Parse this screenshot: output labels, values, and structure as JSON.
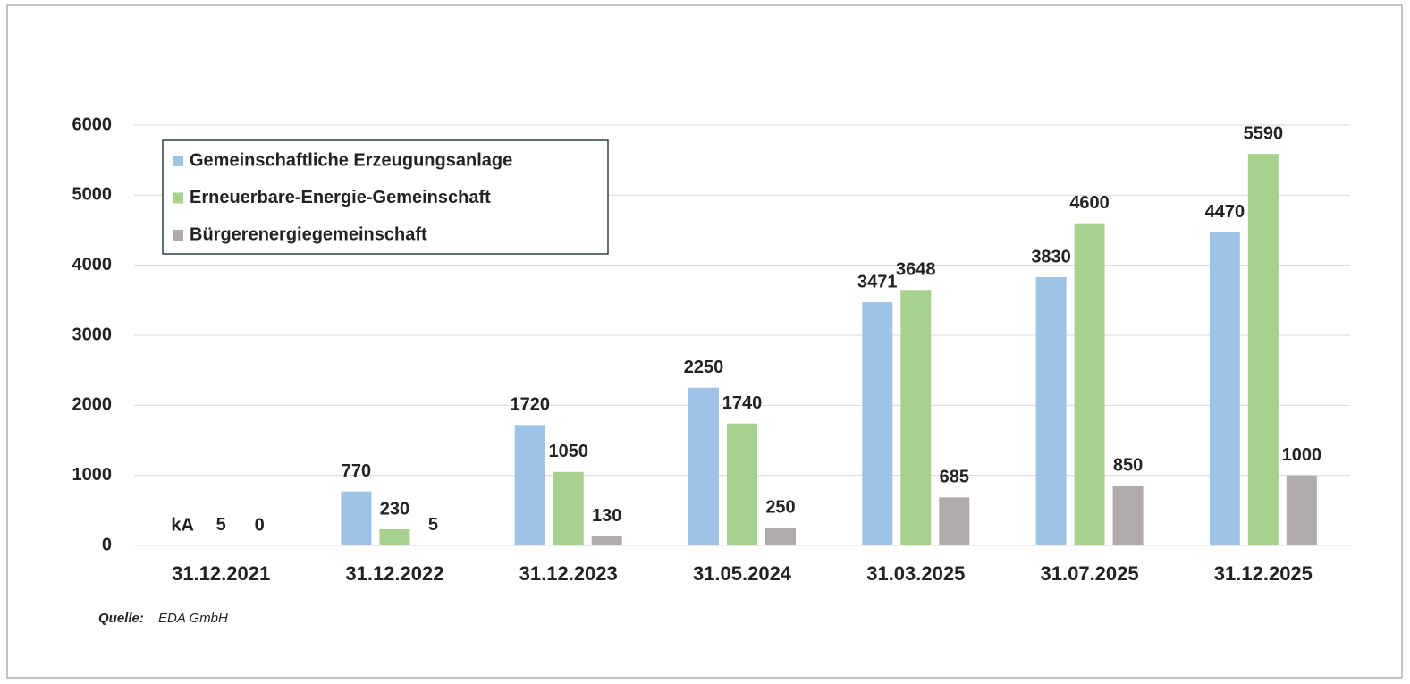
{
  "chart_data": {
    "type": "bar",
    "categories": [
      "31.12.2021",
      "31.12.2022",
      "31.12.2023",
      "31.05.2024",
      "31.03.2025",
      "31.07.2025",
      "31.12.2025"
    ],
    "series": [
      {
        "name": "Gemeinschaftliche Erzeugungsanlage",
        "color": "#9dc3e6",
        "values": [
          null,
          770,
          1720,
          2250,
          3471,
          3830,
          4470
        ],
        "value_labels": [
          "kA",
          "770",
          "1720",
          "2250",
          "3471",
          "3830",
          "4470"
        ]
      },
      {
        "name": "Erneuerbare-Energie-Gemeinschaft",
        "color": "#a9d18e",
        "values": [
          5,
          230,
          1050,
          1740,
          3648,
          4600,
          5590
        ]
      },
      {
        "name": "Bürgerenergiegemeinschaft",
        "color": "#afabab",
        "values": [
          0,
          5,
          130,
          250,
          685,
          850,
          1000
        ]
      }
    ],
    "ylim": [
      0,
      6000
    ],
    "yticks": [
      0,
      1000,
      2000,
      3000,
      4000,
      5000,
      6000
    ],
    "grid": true,
    "legend": "upper left",
    "source": {
      "label": "Quelle:",
      "text": "EDA GmbH"
    }
  }
}
